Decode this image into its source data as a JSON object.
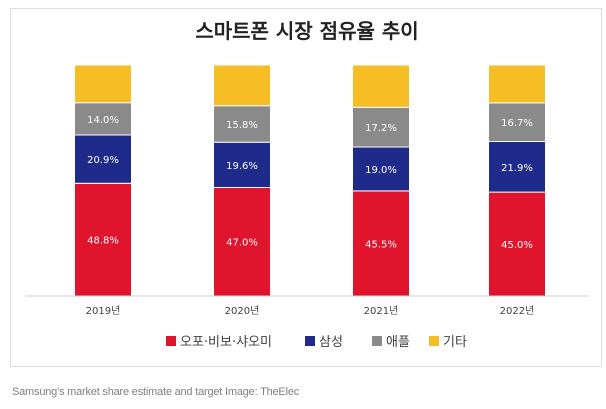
{
  "chart_data": {
    "type": "bar",
    "stacked": true,
    "normalized_100": true,
    "title": "스마트폰 시장 점유율 추이",
    "categories": [
      "2019년",
      "2020년",
      "2021년",
      "2022년"
    ],
    "series": [
      {
        "name": "오포·비보·샤오미",
        "color": "#e0142c",
        "values": [
          48.8,
          47.0,
          45.5,
          45.0
        ],
        "labels": [
          "48.8%",
          "47.0%",
          "45.5%",
          "45.0%"
        ]
      },
      {
        "name": "삼성",
        "color": "#1f2b8a",
        "values": [
          20.9,
          19.6,
          19.0,
          21.9
        ],
        "labels": [
          "20.9%",
          "19.6%",
          "19.0%",
          "21.9%"
        ]
      },
      {
        "name": "애플",
        "color": "#8a8a8a",
        "values": [
          14.0,
          15.8,
          17.2,
          16.7
        ],
        "labels": [
          "14.0%",
          "15.8%",
          "17.2%",
          "16.7%"
        ]
      },
      {
        "name": "기타",
        "color": "#f7bd25",
        "values": [
          16.3,
          17.6,
          18.3,
          16.4
        ]
      }
    ],
    "legend_position": "bottom",
    "grid": false
  },
  "caption": "Samsung's market share estimate and target Image: TheElec"
}
